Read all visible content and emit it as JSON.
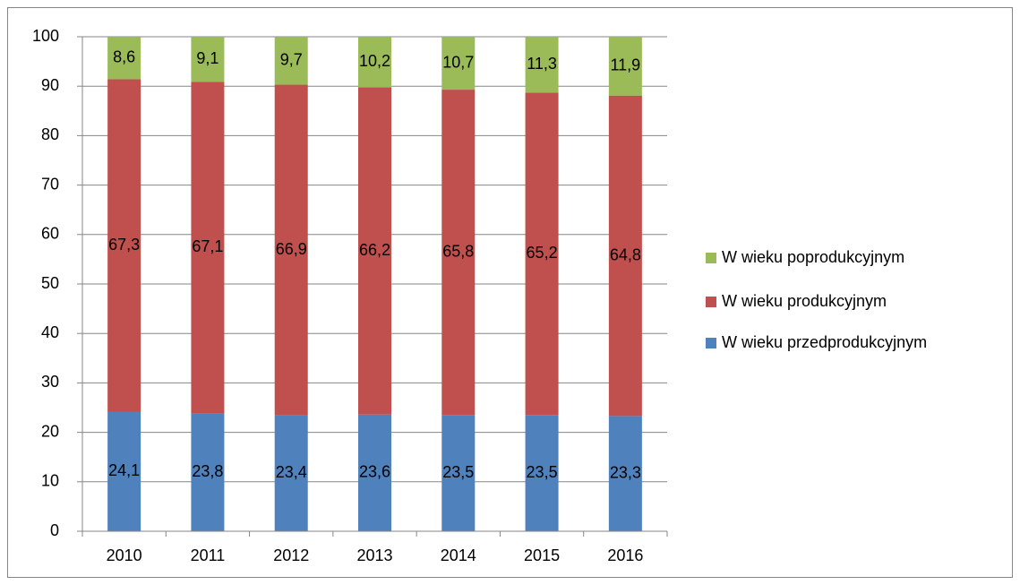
{
  "chart_data": {
    "type": "stacked_bar",
    "categories": [
      "2010",
      "2011",
      "2012",
      "2013",
      "2014",
      "2015",
      "2016"
    ],
    "series": [
      {
        "name": "W wieku przedprodukcyjnym",
        "color": "#4f81bd",
        "values": [
          24.1,
          23.8,
          23.4,
          23.6,
          23.5,
          23.5,
          23.3
        ],
        "value_labels": [
          "24,1",
          "23,8",
          "23,4",
          "23,6",
          "23,5",
          "23,5",
          "23,3"
        ]
      },
      {
        "name": "W wieku produkcyjnym",
        "color": "#c0504d",
        "values": [
          67.3,
          67.1,
          66.9,
          66.2,
          65.8,
          65.2,
          64.8
        ],
        "value_labels": [
          "67,3",
          "67,1",
          "66,9",
          "66,2",
          "65,8",
          "65,2",
          "64,8"
        ]
      },
      {
        "name": "W wieku poprodukcyjnym",
        "color": "#9bbb59",
        "values": [
          8.6,
          9.1,
          9.7,
          10.2,
          10.7,
          11.3,
          11.9
        ],
        "value_labels": [
          "8,6",
          "9,1",
          "9,7",
          "10,2",
          "10,7",
          "11,3",
          "11,9"
        ]
      }
    ],
    "ylim": [
      0,
      100
    ],
    "yticks": [
      0,
      10,
      20,
      30,
      40,
      50,
      60,
      70,
      80,
      90,
      100
    ],
    "grid": true,
    "legend": "right"
  }
}
